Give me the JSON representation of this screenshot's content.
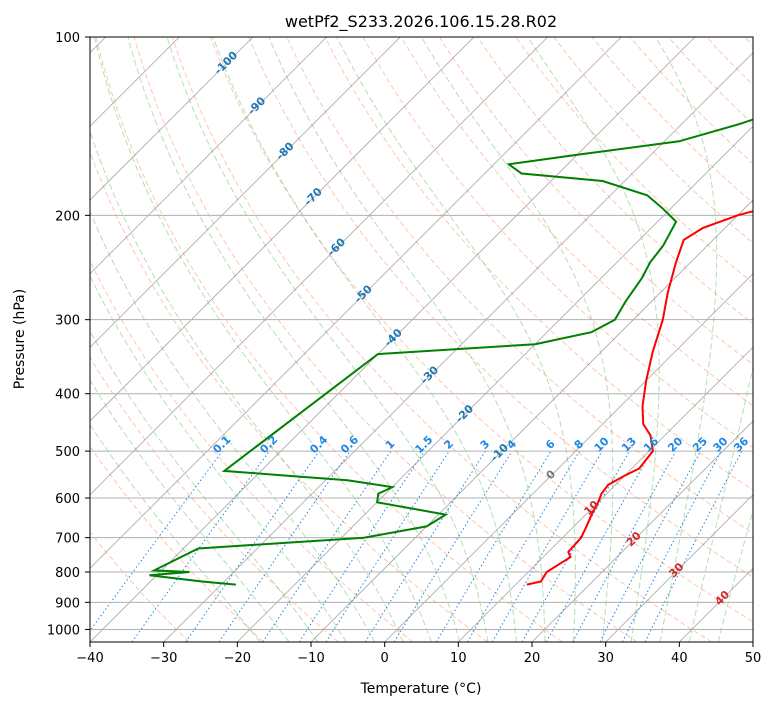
{
  "chart_data": {
    "type": "line",
    "subtype": "skew-t log-p diagram",
    "title": "wetPf2_S233.2026.106.15.28.R02",
    "xlabel": "Temperature (°C)",
    "ylabel": "Pressure (hPa)",
    "xlim": [
      -40,
      50
    ],
    "ylim": [
      1050,
      100
    ],
    "y_scale": "log",
    "x_ticks": [
      -40,
      -30,
      -20,
      -10,
      0,
      10,
      20,
      30,
      40,
      50
    ],
    "y_ticks": [
      100,
      200,
      300,
      400,
      500,
      600,
      700,
      800,
      900,
      1000
    ],
    "grid": true,
    "colors": {
      "temperature": "#ff0000",
      "dewpoint": "#008000",
      "isotherm": "#808080",
      "dry_adiabat": "#ff7f50",
      "moist_adiabat": "#2ca02c",
      "mixing_ratio": "#1e88e5",
      "label_blue": "#1f77b4",
      "label_red": "#d62728",
      "label_gray": "#777777",
      "grid": "#b0b0b0"
    },
    "series": [
      {
        "points": [
          [
            11.5,
            840
          ],
          [
            13.0,
            830
          ],
          [
            12.5,
            800
          ],
          [
            13.3,
            770
          ],
          [
            13.7,
            755
          ],
          [
            12.7,
            740
          ],
          [
            12.5,
            700
          ],
          [
            11.7,
            670
          ],
          [
            10.8,
            640
          ],
          [
            10.0,
            610
          ],
          [
            9.3,
            590
          ],
          [
            9.0,
            570
          ],
          [
            10.0,
            550
          ],
          [
            11.0,
            535
          ],
          [
            10.5,
            500
          ],
          [
            8.0,
            470
          ],
          [
            5.5,
            450
          ],
          [
            3.0,
            420
          ],
          [
            0.0,
            380
          ],
          [
            -3.0,
            340
          ],
          [
            -6.0,
            300
          ],
          [
            -9.0,
            270
          ],
          [
            -12.0,
            240
          ],
          [
            -14.0,
            220
          ],
          [
            -13.0,
            210
          ],
          [
            -10.0,
            200
          ],
          [
            -5.0,
            190
          ],
          [
            0.0,
            180
          ],
          [
            5.0,
            170
          ],
          [
            8.0,
            160
          ],
          [
            9.5,
            150
          ],
          [
            11.0,
            140
          ],
          [
            15.0,
            135
          ],
          [
            17.5,
            130
          ],
          [
            20.0,
            125
          ],
          [
            23.0,
            120
          ],
          [
            26.0,
            115
          ],
          [
            29.0,
            110
          ],
          [
            33.0,
            105
          ],
          [
            36.0,
            100
          ]
        ]
      },
      {
        "points": [
          [
            -28.0,
            840
          ],
          [
            -33.0,
            830
          ],
          [
            -37.0,
            820
          ],
          [
            -41.0,
            810
          ],
          [
            -36.0,
            800
          ],
          [
            -41.0,
            795
          ],
          [
            -38.0,
            730
          ],
          [
            -17.0,
            700
          ],
          [
            -10.0,
            670
          ],
          [
            -9.0,
            640
          ],
          [
            -20.0,
            610
          ],
          [
            -21.0,
            590
          ],
          [
            -20.0,
            575
          ],
          [
            -27.0,
            560
          ],
          [
            -36.0,
            550
          ],
          [
            -45.0,
            540
          ],
          [
            -40.0,
            343
          ],
          [
            -20.0,
            330
          ],
          [
            -14.0,
            315
          ],
          [
            -12.5,
            300
          ],
          [
            -13.5,
            280
          ],
          [
            -14.5,
            255
          ],
          [
            -15.5,
            240
          ],
          [
            -16.0,
            225
          ],
          [
            -17.5,
            205
          ],
          [
            -21.0,
            195
          ],
          [
            -25.0,
            185
          ],
          [
            -33.0,
            175
          ],
          [
            -45.0,
            170
          ],
          [
            -48.0,
            164
          ],
          [
            -40.0,
            158
          ],
          [
            -28.0,
            150
          ],
          [
            -22.0,
            140
          ],
          [
            -17.0,
            130
          ],
          [
            -12.0,
            120
          ],
          [
            -5.0,
            110
          ],
          [
            1.0,
            100
          ]
        ]
      }
    ],
    "mixing_ratio_labels": [
      "0.1",
      "0.2",
      "0.4",
      "0.6",
      "1",
      "1.5",
      "2",
      "3",
      "4",
      "6",
      "8",
      "10",
      "13",
      "16",
      "20",
      "25",
      "30",
      "36"
    ],
    "mixing_ratio_values": [
      0.1,
      0.2,
      0.4,
      0.6,
      1,
      1.5,
      2,
      3,
      4,
      6,
      8,
      10,
      13,
      16,
      20,
      25,
      30,
      36
    ],
    "isotherm_labels_blue": [
      "-100",
      "-90",
      "-80",
      "-70",
      "-60",
      "-50",
      "-40",
      "-30",
      "-20",
      "-10"
    ],
    "isotherm_labels_red": [
      "10",
      "20",
      "30",
      "40"
    ],
    "isotherm_label_zero": "0"
  }
}
